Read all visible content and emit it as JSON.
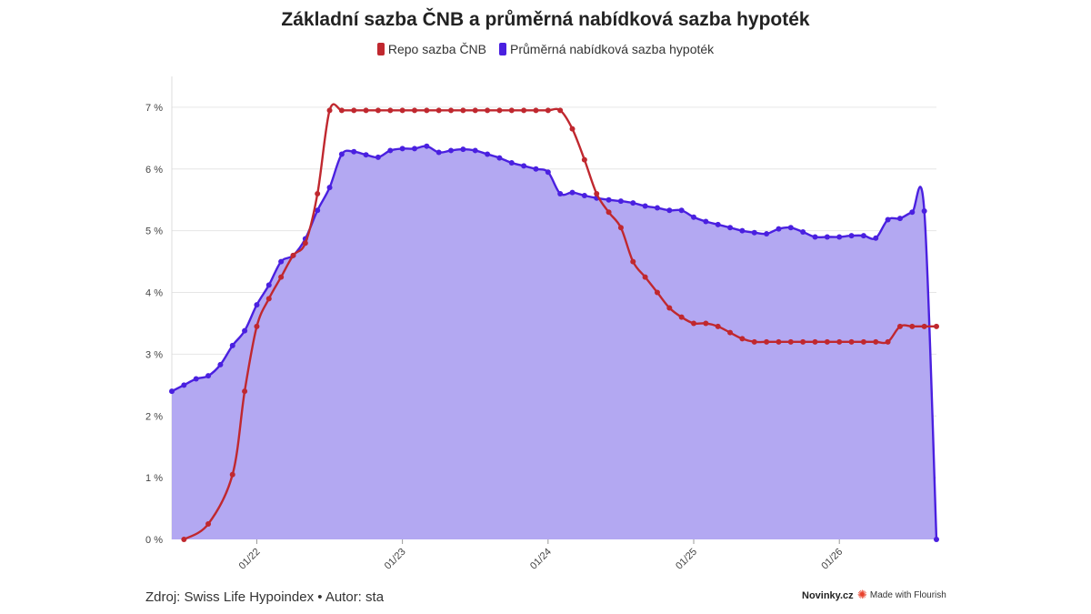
{
  "chart_data": {
    "type": "line",
    "title": "Základní sazba ČNB a průměrná nabídková sazba hypoték",
    "ylim": [
      0,
      7.5
    ],
    "y_ticks": [
      0,
      1,
      2,
      3,
      4,
      5,
      6,
      7
    ],
    "y_tick_labels": [
      "0 %",
      "1 %",
      "2 %",
      "3 %",
      "4 %",
      "5 %",
      "6 %",
      "7 %"
    ],
    "x_ticks": [
      7,
      19,
      31,
      43,
      55
    ],
    "x_tick_labels": [
      "01/22",
      "01/23",
      "01/24",
      "01/25",
      "01/26"
    ],
    "xlim": [
      0,
      63
    ],
    "grid": true,
    "legend_position": "top-center",
    "series": [
      {
        "name": "Repo sazba ČNB",
        "color": "#c0282f",
        "area": false,
        "x": [
          1,
          3,
          5,
          6,
          7,
          8,
          9,
          10,
          11,
          12,
          13,
          14,
          15,
          16,
          17,
          18,
          19,
          20,
          21,
          22,
          23,
          24,
          25,
          26,
          27,
          28,
          29,
          30,
          31,
          32,
          33,
          34,
          35,
          36,
          37,
          38,
          39,
          40,
          41,
          42,
          43,
          44,
          45,
          46,
          47,
          48,
          49,
          50,
          51,
          52,
          53,
          54,
          55,
          56,
          57,
          58,
          59,
          60,
          61,
          62,
          63
        ],
        "values": [
          0,
          0.25,
          1.05,
          2.4,
          3.45,
          3.9,
          4.25,
          4.6,
          4.8,
          5.6,
          6.95,
          6.95,
          6.95,
          6.95,
          6.95,
          6.95,
          6.95,
          6.95,
          6.95,
          6.95,
          6.95,
          6.95,
          6.95,
          6.95,
          6.95,
          6.95,
          6.95,
          6.95,
          6.95,
          6.95,
          6.65,
          6.15,
          5.6,
          5.3,
          5.05,
          4.5,
          4.25,
          4.0,
          3.75,
          3.6,
          3.5,
          3.5,
          3.45,
          3.35,
          3.25,
          3.2,
          3.2,
          3.2,
          3.2,
          3.2,
          3.2,
          3.2,
          3.2,
          3.2,
          3.2,
          3.2,
          3.2,
          3.45,
          3.45,
          3.45,
          3.45
        ]
      },
      {
        "name": "Průměrná nabídková sazba hypoték",
        "color": "#4a20e0",
        "area": true,
        "area_color": "#b3a8f2",
        "x": [
          0,
          1,
          2,
          3,
          4,
          5,
          6,
          7,
          8,
          9,
          10,
          11,
          12,
          13,
          14,
          15,
          16,
          17,
          18,
          19,
          20,
          21,
          22,
          23,
          24,
          25,
          26,
          27,
          28,
          29,
          30,
          31,
          32,
          33,
          34,
          35,
          36,
          37,
          38,
          39,
          40,
          41,
          42,
          43,
          44,
          45,
          46,
          47,
          48,
          49,
          50,
          51,
          52,
          53,
          54,
          55,
          56,
          57,
          58,
          59,
          60,
          61,
          62,
          63
        ],
        "values": [
          2.4,
          2.5,
          2.6,
          2.65,
          2.83,
          3.14,
          3.38,
          3.8,
          4.12,
          4.5,
          4.6,
          4.87,
          5.33,
          5.7,
          6.24,
          6.28,
          6.23,
          6.19,
          6.3,
          6.33,
          6.33,
          6.37,
          6.27,
          6.3,
          6.32,
          6.3,
          6.24,
          6.18,
          6.1,
          6.05,
          6.0,
          5.95,
          5.6,
          5.62,
          5.57,
          5.53,
          5.5,
          5.48,
          5.45,
          5.4,
          5.37,
          5.33,
          5.33,
          5.22,
          5.15,
          5.1,
          5.05,
          5.0,
          4.97,
          4.95,
          5.03,
          5.05,
          4.98,
          4.9,
          4.9,
          4.9,
          4.92,
          4.92,
          4.88,
          5.18,
          5.2,
          5.3,
          5.32,
          0
        ]
      }
    ]
  },
  "footer": {
    "source": "Zdroj: Swiss Life Hypoindex • Autor: sta",
    "brand": "Novinky.cz",
    "made_with": "Made with Flourish"
  },
  "icons": {
    "flourish": "flourish-logo-icon"
  }
}
